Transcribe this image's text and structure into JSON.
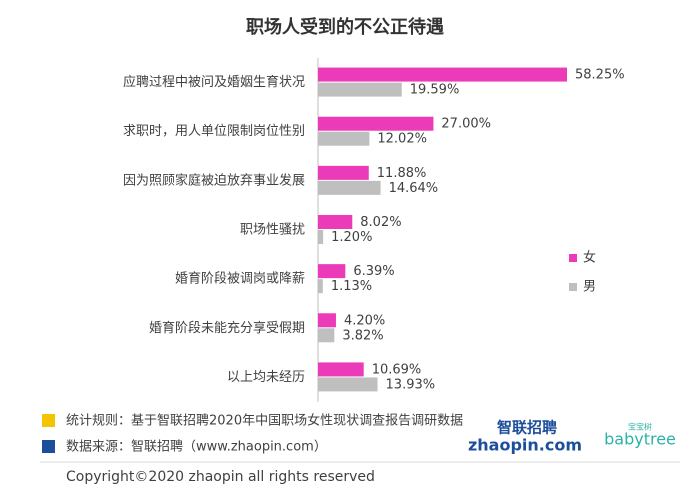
{
  "chart_data": {
    "type": "hbar",
    "title": "职场人受到的不公正待遇",
    "categories": [
      "应聘过程中被问及婚姻生育状况",
      "求职时，用人单位限制岗位性别",
      "因为照顾家庭被迫放弃事业发展",
      "职场性骚扰",
      "婚育阶段被调岗或降薪",
      "婚育阶段未能充分享受假期",
      "以上均未经历"
    ],
    "series": [
      {
        "name": "女",
        "color": "#ec3bb8",
        "values": [
          58.25,
          27.0,
          11.88,
          8.02,
          6.39,
          4.2,
          10.69
        ],
        "value_labels": [
          "58.25%",
          "27.00%",
          "11.88%",
          "8.02%",
          "6.39%",
          "4.20%",
          "10.69%"
        ]
      },
      {
        "name": "男",
        "color": "#bfbfbf",
        "values": [
          19.59,
          12.02,
          14.64,
          1.2,
          1.13,
          3.82,
          13.93
        ],
        "value_labels": [
          "19.59%",
          "12.02%",
          "14.64%",
          "1.20%",
          "1.13%",
          "3.82%",
          "13.93%"
        ]
      }
    ],
    "legend": "right"
  },
  "footer": {
    "notes": [
      {
        "text": "统计规则：基于智联招聘2020年中国职场女性现状调查报告调研数据",
        "color": "#f5c400"
      },
      {
        "text": "数据来源：智联招聘（www.zhaopin.com）",
        "color": "#1d4e9c"
      }
    ],
    "copyright": "Copyright©2020 zhaopin all rights reserved",
    "logos": {
      "zhaopin_cn": "智联招聘",
      "zhaopin_en": "zhaopin.com",
      "babytree": "babytree",
      "babytree_cn": "宝宝树"
    }
  }
}
